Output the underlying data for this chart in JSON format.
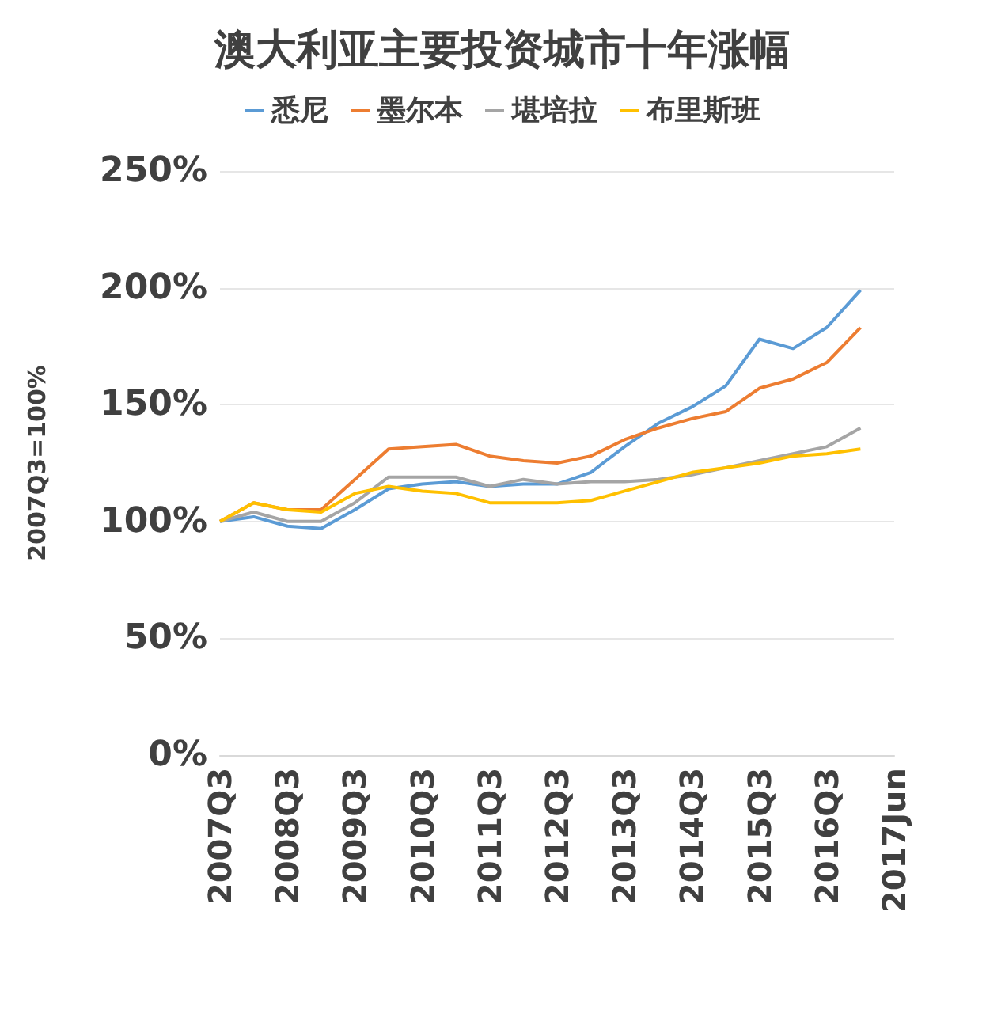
{
  "chart_data": {
    "type": "line",
    "title": "澳大利亚主要投资城市十年涨幅",
    "ylabel": "2007Q3=100%",
    "categories": [
      "2007Q3",
      null,
      "2008Q3",
      null,
      "2009Q3",
      null,
      "2010Q3",
      null,
      "2011Q3",
      null,
      "2012Q3",
      null,
      "2013Q3",
      null,
      "2014Q3",
      null,
      "2015Q3",
      null,
      "2016Q3",
      null,
      "2017Jun"
    ],
    "series": [
      {
        "name": "悉尼",
        "color": "#5b9bd5",
        "values": [
          100,
          102,
          98,
          97,
          105,
          114,
          116,
          117,
          115,
          116,
          116,
          121,
          132,
          142,
          149,
          158,
          178,
          174,
          183,
          199,
          null
        ]
      },
      {
        "name": "墨尔本",
        "color": "#ed7d31",
        "values": [
          100,
          108,
          105,
          105,
          118,
          131,
          132,
          133,
          128,
          126,
          125,
          128,
          135,
          140,
          144,
          147,
          157,
          161,
          168,
          183,
          null
        ]
      },
      {
        "name": "堪培拉",
        "color": "#a5a5a5",
        "values": [
          100,
          104,
          100,
          100,
          108,
          119,
          119,
          119,
          115,
          118,
          116,
          117,
          117,
          118,
          120,
          123,
          126,
          129,
          132,
          140,
          null
        ]
      },
      {
        "name": "布里斯班",
        "color": "#ffc000",
        "values": [
          100,
          108,
          105,
          104,
          112,
          115,
          113,
          112,
          108,
          108,
          108,
          109,
          113,
          117,
          121,
          123,
          125,
          128,
          129,
          131,
          null
        ]
      }
    ],
    "ylim": [
      0,
      250
    ],
    "yticks": [
      {
        "value": 0,
        "label": "0%"
      },
      {
        "value": 50,
        "label": "50%"
      },
      {
        "value": 100,
        "label": "100%"
      },
      {
        "value": 150,
        "label": "150%"
      },
      {
        "value": 200,
        "label": "200%"
      },
      {
        "value": 250,
        "label": "250%"
      }
    ],
    "grid": "y",
    "legend": "top",
    "marker": "none",
    "line_style": "solid"
  }
}
